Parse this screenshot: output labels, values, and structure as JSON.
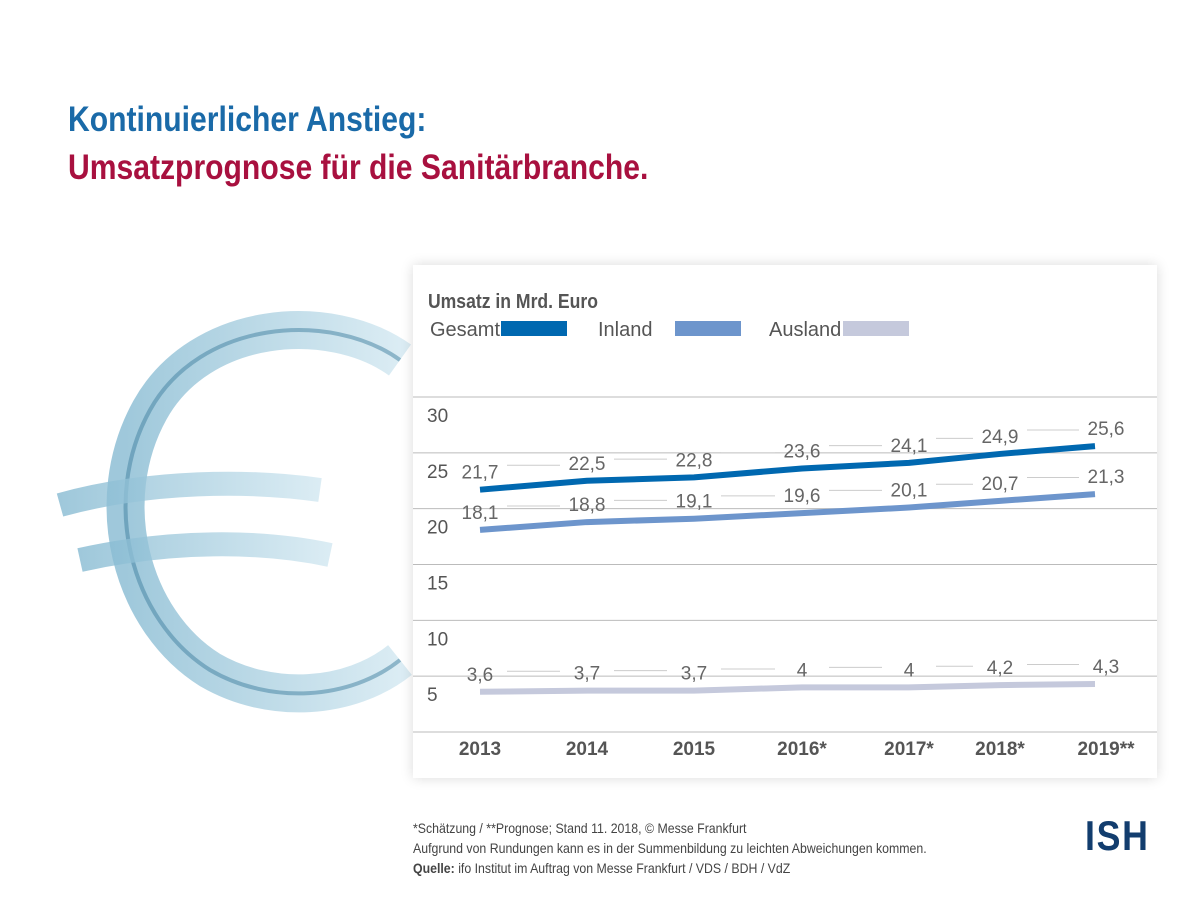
{
  "title_line1": "Kontinuierlicher Anstieg:",
  "title_line2": "Umsatzprognose für die Sanitärbranche.",
  "chart_data": {
    "type": "line",
    "title": "Umsatz in Mrd. Euro",
    "categories": [
      "2013",
      "2014",
      "2015",
      "2016*",
      "2017*",
      "2018*",
      "2019**"
    ],
    "y_ticks": [
      "30",
      "25",
      "20",
      "15",
      "10",
      "5"
    ],
    "ylim": [
      0,
      30
    ],
    "grid": true,
    "legend_placement": "top-left",
    "series": [
      {
        "name": "Gesamt",
        "color": "#0068b0",
        "values": [
          21.7,
          22.5,
          22.8,
          23.6,
          24.1,
          24.9,
          25.6
        ],
        "labels": [
          "21,7",
          "22,5",
          "22,8",
          "23,6",
          "24,1",
          "24,9",
          "25,6"
        ]
      },
      {
        "name": "Inland",
        "color": "#6d95cc",
        "values": [
          18.1,
          18.8,
          19.1,
          19.6,
          20.1,
          20.7,
          21.3
        ],
        "labels": [
          "18,1",
          "18,8",
          "19,1",
          "19,6",
          "20,1",
          "20,7",
          "21,3"
        ]
      },
      {
        "name": "Ausland",
        "color": "#c5c9dc",
        "values": [
          3.6,
          3.7,
          3.7,
          4,
          4,
          4.2,
          4.3
        ],
        "labels": [
          "3,6",
          "3,7",
          "3,7",
          "4",
          "4",
          "4,2",
          "4,3"
        ]
      }
    ]
  },
  "footer": {
    "line1": "*Schätzung / **Prognose; Stand 11. 2018, © Messe Frankfurt",
    "line2": "Aufgrund von Rundungen kann es in der Summenbildung zu leichten Abweichungen kommen.",
    "source_label": "Quelle:",
    "source_text": " ifo Institut im Auftrag von Messe Frankfurt / VDS / BDH / VdZ"
  },
  "logo": "ISH"
}
